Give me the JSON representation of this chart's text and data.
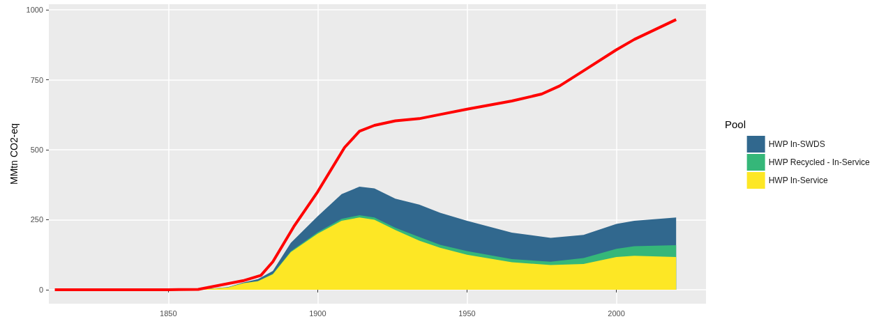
{
  "chart_data": {
    "type": "area",
    "ylabel": "MMtn CO2-eq",
    "legend_title": "Pool",
    "legend": "right",
    "grid": true,
    "stacked": true,
    "x": [
      1860,
      1870,
      1875,
      1880,
      1885,
      1891,
      1900,
      1908,
      1914,
      1919,
      1926,
      1934,
      1941,
      1950,
      1965,
      1978,
      1989,
      2000,
      2006,
      2020
    ],
    "series": [
      {
        "name": "HWP In-Service",
        "color": "#fde725",
        "values": [
          0,
          8,
          23,
          30,
          55,
          134,
          200,
          246,
          258,
          250,
          213,
          175,
          150,
          125,
          98,
          88,
          92,
          117,
          121,
          117
        ]
      },
      {
        "name": "HWP Recycled - In-Service",
        "color": "#35b779",
        "values": [
          0,
          0,
          0,
          1,
          2,
          3,
          5,
          7,
          8,
          8,
          8,
          13,
          10,
          13,
          11,
          12,
          21,
          29,
          34,
          42
        ]
      },
      {
        "name": "HWP In-SWDS",
        "color": "#31688e",
        "values": [
          0,
          1,
          2,
          7,
          10,
          30,
          57,
          88,
          102,
          104,
          104,
          116,
          115,
          108,
          95,
          85,
          83,
          89,
          91,
          99
        ]
      },
      {
        "type": "line",
        "color": "#ff0000",
        "x": [
          1812,
          1850,
          1860,
          1875,
          1881,
          1885,
          1892,
          1900,
          1909,
          1914,
          1919,
          1926,
          1934,
          1941,
          1950,
          1965,
          1975,
          1981,
          1989,
          2000,
          2006,
          2020
        ],
        "values": [
          0,
          0,
          1,
          32,
          51,
          100,
          225,
          350,
          508,
          566,
          587,
          603,
          611,
          626,
          645,
          674,
          699,
          728,
          782,
          857,
          894,
          965
        ]
      }
    ],
    "xlim": [
      1810,
      2030
    ],
    "xticks": [
      1850,
      1900,
      1950,
      2000
    ],
    "ylim": [
      -50,
      1020
    ],
    "yticks": [
      0,
      250,
      500,
      750,
      1000
    ]
  }
}
